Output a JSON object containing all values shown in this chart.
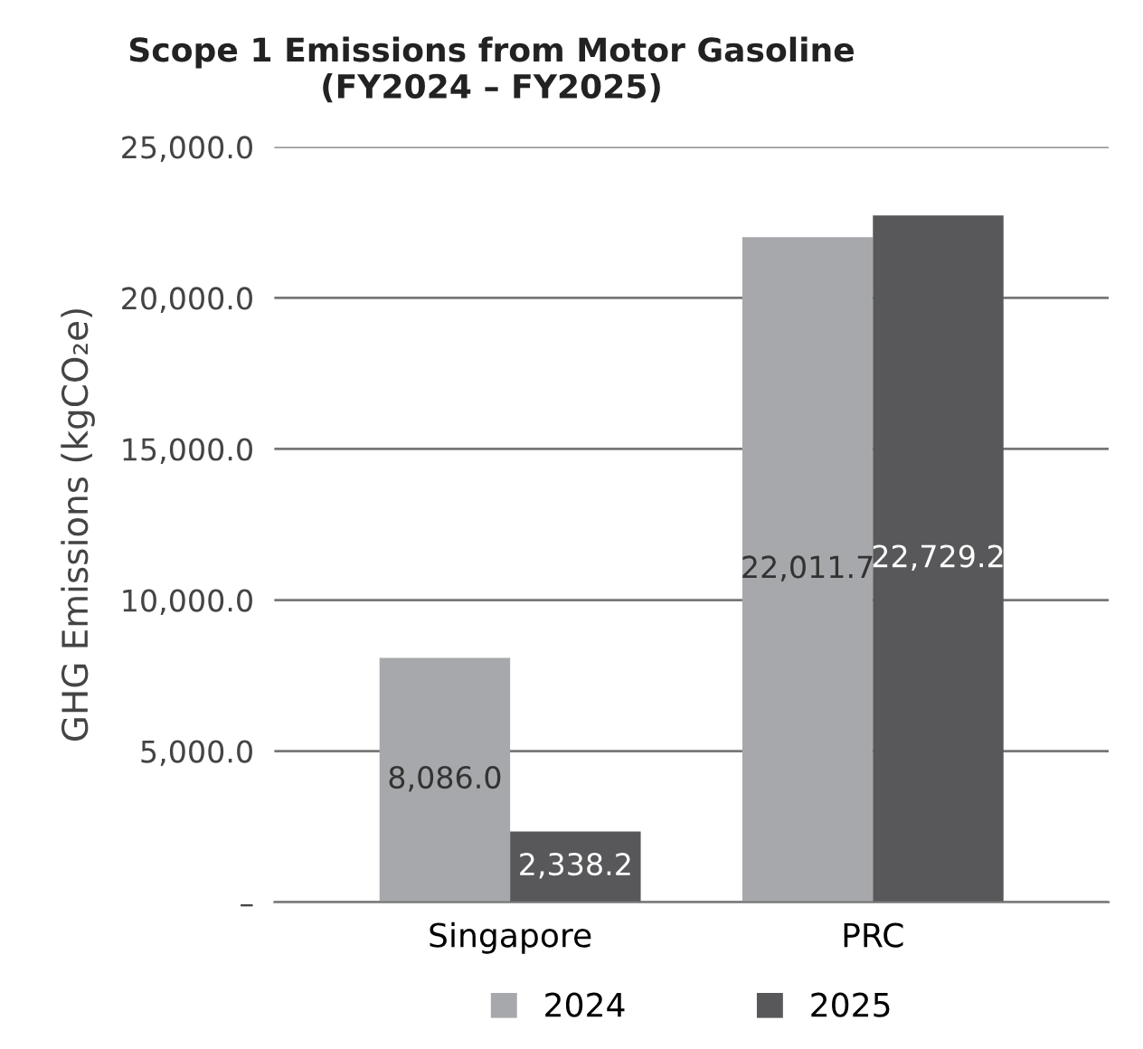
{
  "chart_data": {
    "type": "bar",
    "title": "Scope 1 Emissions from Motor Gasoline\n(FY2024 – FY2025)",
    "ylabel": "GHG Emissions (kgCO₂e)",
    "categories": [
      "Singapore",
      "PRC"
    ],
    "series": [
      {
        "name": "2024",
        "color": "#a7a8ab",
        "values": [
          8086.0,
          22011.7
        ],
        "value_labels": [
          "8,086.0",
          "22,011.7"
        ]
      },
      {
        "name": "2025",
        "color": "#58585a",
        "values": [
          2338.2,
          22729.2
        ],
        "value_labels": [
          "2,338.2",
          "22,729.2"
        ]
      }
    ],
    "ylim": [
      0,
      25000
    ],
    "yticks": [
      {
        "value": 0,
        "label": "–"
      },
      {
        "value": 5000,
        "label": "5,000.0"
      },
      {
        "value": 10000,
        "label": "10,000.0"
      },
      {
        "value": 15000,
        "label": "15,000.0"
      },
      {
        "value": 20000,
        "label": "20,000.0"
      },
      {
        "value": 25000,
        "label": "25,000.0"
      }
    ],
    "grid": "y",
    "legend": "bottom"
  }
}
